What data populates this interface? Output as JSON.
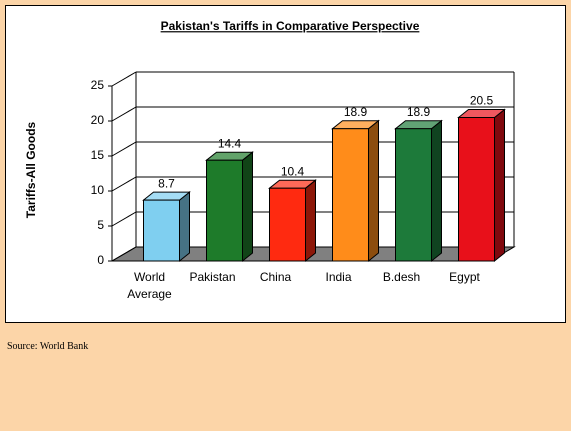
{
  "chart_data": {
    "type": "bar3d",
    "title": "Pakistan's Tariffs in Comparative Perspective",
    "y_label": "Tariffs-All Goods",
    "categories": [
      "World Average",
      "Pakistan",
      "China",
      "India",
      "B.desh",
      "Egypt"
    ],
    "values": [
      8.7,
      14.4,
      10.4,
      18.9,
      18.9,
      20.5
    ],
    "colors": [
      "#7fcff0",
      "#1e7b2a",
      "#ff2a10",
      "#ff8c1a",
      "#1d7a3a",
      "#e8101a"
    ],
    "ylim": [
      0,
      25
    ],
    "yticks": [
      0,
      5,
      10,
      15,
      20,
      25
    ],
    "grid": true
  },
  "source": "Source: World Bank"
}
